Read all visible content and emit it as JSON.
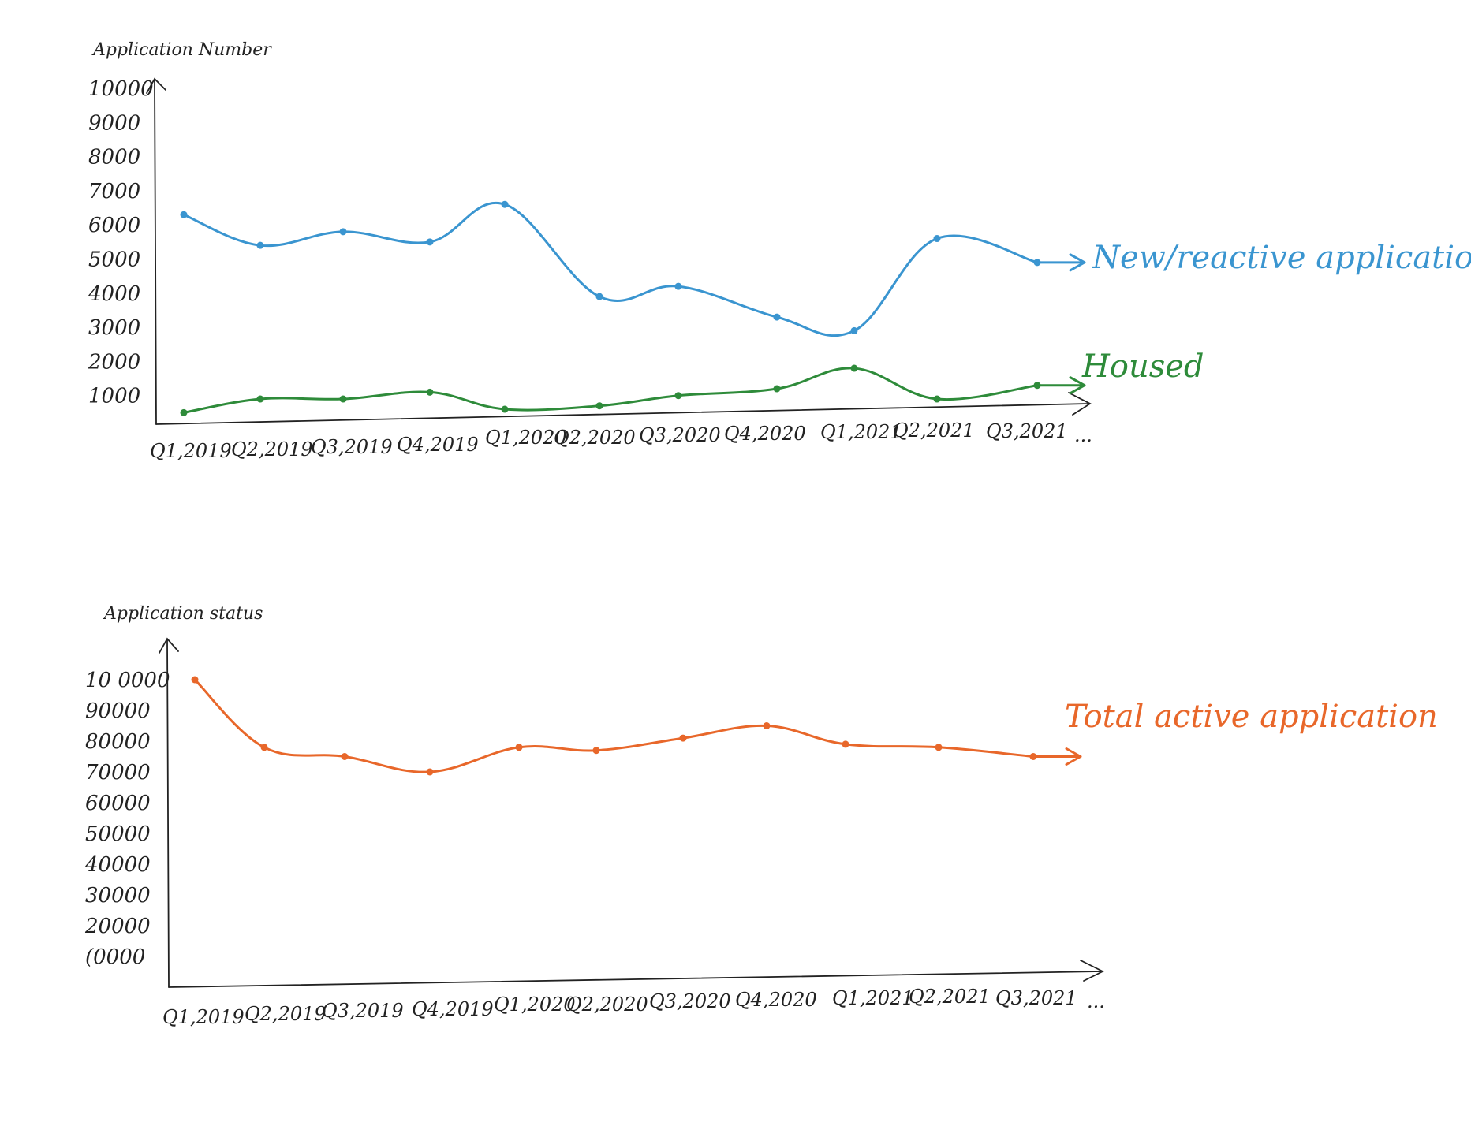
{
  "chart_data": [
    {
      "type": "line",
      "ylabel": "Application Number",
      "y_ticks": [
        "1000",
        "2000",
        "3000",
        "4000",
        "5000",
        "6000",
        "7000",
        "8000",
        "9000",
        "10000"
      ],
      "ylim": [
        0,
        10000
      ],
      "categories": [
        "Q1,2019",
        "Q2,2019",
        "Q3,2019",
        "Q4,2019",
        "Q1,2020",
        "Q2,2020",
        "Q3,2020",
        "Q4,2020",
        "Q1,2021",
        "Q2,2021",
        "Q3,2021"
      ],
      "x_continuation": "...",
      "series": [
        {
          "name": "New/reactive application",
          "color": "#3a95d0",
          "values": [
            6300,
            5400,
            5800,
            5500,
            6600,
            3900,
            4200,
            3300,
            2900,
            5600,
            4900
          ]
        },
        {
          "name": "Housed",
          "color": "#2e8b3a",
          "values": [
            500,
            900,
            900,
            1100,
            600,
            700,
            1000,
            1200,
            1800,
            900,
            1300
          ]
        }
      ]
    },
    {
      "type": "line",
      "ylabel": "Application status",
      "y_ticks": [
        "10000",
        "20000",
        "30000",
        "40000",
        "50000",
        "60000",
        "70000",
        "80000",
        "90000",
        "100000"
      ],
      "y_tick_labels_shown": [
        "(0000",
        "20000",
        "30000",
        "40000",
        "50000",
        "60000",
        "70000",
        "80000",
        "90000",
        "10 0000"
      ],
      "ylim": [
        0,
        100000
      ],
      "categories": [
        "Q1,2019",
        "Q2,2019",
        "Q3,2019",
        "Q4,2019",
        "Q1,2020",
        "Q2,2020",
        "Q3,2020",
        "Q4,2020",
        "Q1,2021",
        "Q2,2021",
        "Q3,2021"
      ],
      "x_continuation": "...",
      "series": [
        {
          "name": "Total active application",
          "color": "#e8672a",
          "values": [
            100000,
            78000,
            75000,
            70000,
            78000,
            77000,
            81000,
            85000,
            79000,
            78000,
            75000
          ]
        }
      ]
    }
  ]
}
